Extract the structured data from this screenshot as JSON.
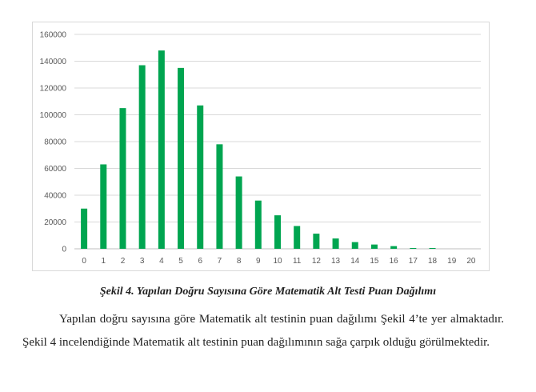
{
  "chart_data": {
    "type": "bar",
    "title": "",
    "xlabel": "",
    "ylabel": "",
    "categories": [
      "0",
      "1",
      "2",
      "3",
      "4",
      "5",
      "6",
      "7",
      "8",
      "9",
      "10",
      "11",
      "12",
      "13",
      "14",
      "15",
      "16",
      "17",
      "18",
      "19",
      "20"
    ],
    "values": [
      30000,
      63000,
      105000,
      137000,
      148000,
      135000,
      107000,
      78000,
      54000,
      36000,
      25000,
      17000,
      11300,
      7700,
      5000,
      3200,
      2000,
      600,
      600,
      0,
      0
    ],
    "ylim": [
      0,
      160000
    ],
    "yticks": [
      "0",
      "20000",
      "40000",
      "60000",
      "80000",
      "100000",
      "120000",
      "140000",
      "160000"
    ],
    "grid": true,
    "bar_color": "#00a550"
  },
  "caption": "Şekil 4. Yapılan Doğru Sayısına Göre Matematik Alt Testi Puan Dağılımı",
  "paragraph": "Yapılan doğru sayısına göre Matematik alt testinin puan dağılımı Şekil 4’te yer almaktadır. Şekil 4 incelendiğinde Matematik alt testinin puan dağılımının sağa çarpık olduğu görülmektedir."
}
